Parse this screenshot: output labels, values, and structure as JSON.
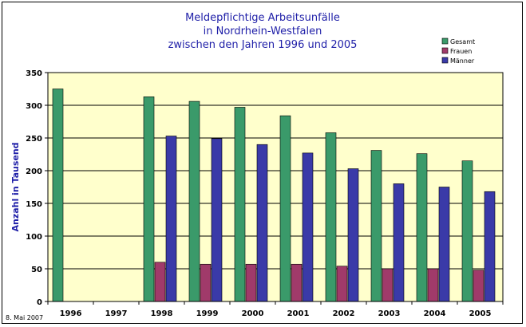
{
  "chart_data": {
    "type": "bar",
    "title": [
      "Meldepflichtige Arbeitsunfälle",
      "in Nordrhein-Westfalen",
      "zwischen den Jahren 1996 und 2005"
    ],
    "ylabel": "Anzahl in Tausend",
    "xlabel": "",
    "ylim": [
      0,
      350
    ],
    "yticks": [
      0,
      50,
      100,
      150,
      200,
      250,
      300,
      350
    ],
    "grid": true,
    "legend_position": "top-right",
    "categories": [
      "1996",
      "1997",
      "1998",
      "1999",
      "2000",
      "2001",
      "2002",
      "2003",
      "2004",
      "2005"
    ],
    "series": [
      {
        "name": "Gesamt",
        "color": "#3a9a6a",
        "values": [
          325,
          null,
          313,
          306,
          297,
          284,
          258,
          231,
          226,
          215
        ]
      },
      {
        "name": "Frauen",
        "color": "#a03a6a",
        "values": [
          null,
          null,
          60,
          57,
          57,
          57,
          54,
          50,
          50,
          48
        ]
      },
      {
        "name": "Männer",
        "color": "#3a3aa8",
        "values": [
          null,
          null,
          253,
          249,
          240,
          227,
          203,
          180,
          175,
          168
        ]
      }
    ],
    "plot_background": "#ffffcc"
  },
  "footnote": "8. Mai 2007"
}
